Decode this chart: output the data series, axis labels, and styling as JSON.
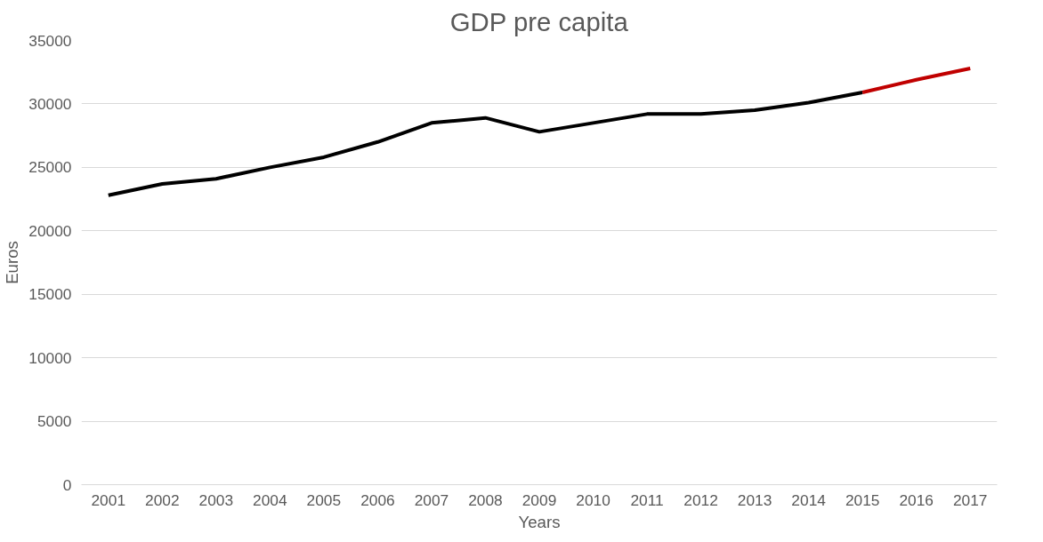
{
  "chart_data": {
    "type": "line",
    "title": "GDP pre capita",
    "xlabel": "Years",
    "ylabel": "Euros",
    "categories": [
      "2001",
      "2002",
      "2003",
      "2004",
      "2005",
      "2006",
      "2007",
      "2008",
      "2009",
      "2010",
      "2011",
      "2012",
      "2013",
      "2014",
      "2015",
      "2016",
      "2017"
    ],
    "series": [
      {
        "color": "#000000",
        "values": [
          22800,
          23700,
          24100,
          25000,
          25800,
          27000,
          28500,
          28900,
          27800,
          28500,
          29200,
          29200,
          29500,
          30100,
          30900,
          null,
          null
        ]
      },
      {
        "color": "#c00000",
        "values": [
          null,
          null,
          null,
          null,
          null,
          null,
          null,
          null,
          null,
          null,
          null,
          null,
          null,
          null,
          30900,
          31900,
          32800
        ]
      }
    ],
    "ylim": [
      0,
      35000
    ],
    "yticks": [
      0,
      5000,
      10000,
      15000,
      20000,
      25000,
      30000,
      35000
    ],
    "grid": "y",
    "marker": "none",
    "line_style": "solid"
  }
}
